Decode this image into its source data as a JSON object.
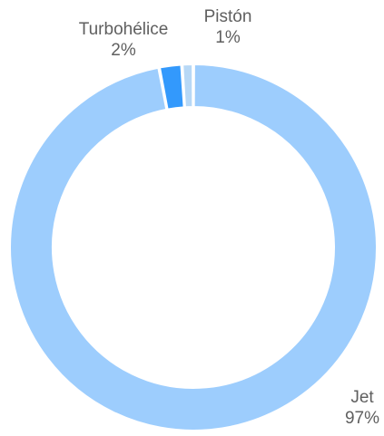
{
  "chart_data": {
    "type": "pie",
    "variant": "donut",
    "categories": [
      "Jet",
      "Turbohélice",
      "Pistón"
    ],
    "values": [
      97,
      2,
      1
    ],
    "value_labels": [
      "97%",
      "2%",
      "1%"
    ],
    "colors": [
      "#9dcdfd",
      "#3399fc",
      "#b7d8f6"
    ],
    "start": "top",
    "direction": "clockwise",
    "legend": "none"
  }
}
